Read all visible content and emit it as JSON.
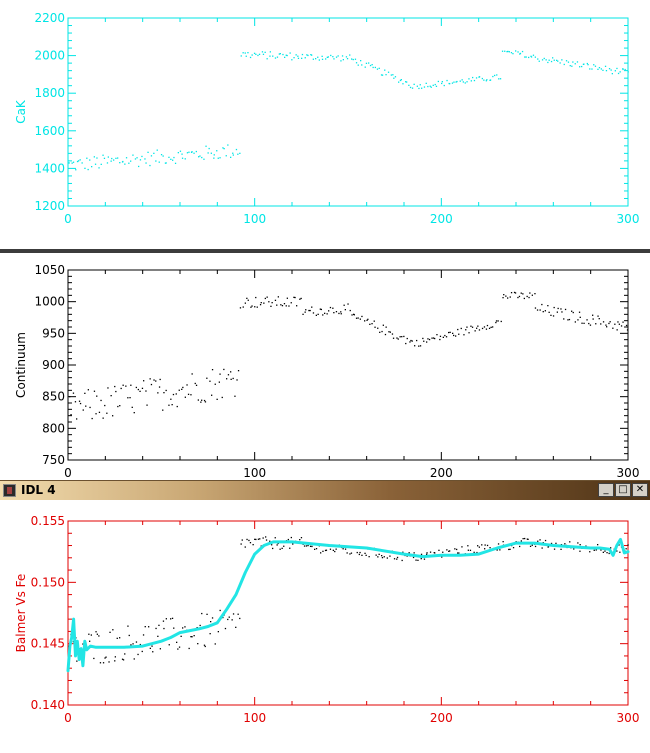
{
  "window": {
    "title": "IDL 4",
    "minimize_icon": "minimize-icon",
    "maximize_icon": "maximize-icon",
    "close_icon": "close-icon",
    "minimize_glyph": "_",
    "maximize_glyph": "□",
    "close_glyph": "✕"
  },
  "chart_data": [
    {
      "type": "scatter",
      "title": "",
      "xlabel": "",
      "ylabel": "CaK",
      "xlim": [
        0,
        300
      ],
      "ylim": [
        1200,
        2200
      ],
      "xticks": [
        0,
        100,
        200,
        300
      ],
      "yticks": [
        1200,
        1400,
        1600,
        1800,
        2000,
        2200
      ],
      "color": "#00e5e5",
      "background": "#ffffff",
      "series": [
        {
          "segments": [
            {
              "x0": 0,
              "x1": 92,
              "y0": 1420,
              "y1": 1500,
              "spread": 80
            },
            {
              "x0": 92,
              "x1": 120,
              "y0": 2010,
              "y1": 2000,
              "spread": 40
            },
            {
              "x0": 120,
              "x1": 150,
              "y0": 2000,
              "y1": 1990,
              "spread": 35
            },
            {
              "x0": 150,
              "x1": 185,
              "y0": 1990,
              "y1": 1840,
              "spread": 35
            },
            {
              "x0": 185,
              "x1": 232,
              "y0": 1840,
              "y1": 1890,
              "spread": 30
            },
            {
              "x0": 232,
              "x1": 245,
              "y0": 2020,
              "y1": 2010,
              "spread": 30
            },
            {
              "x0": 245,
              "x1": 300,
              "y0": 2000,
              "y1": 1910,
              "spread": 35
            }
          ]
        }
      ]
    },
    {
      "type": "scatter",
      "title": "",
      "xlabel": "",
      "ylabel": "Continuum",
      "xlim": [
        0,
        300
      ],
      "ylim": [
        750,
        1050
      ],
      "xticks": [
        0,
        100,
        200,
        300
      ],
      "yticks": [
        750,
        800,
        850,
        900,
        950,
        1000,
        1050
      ],
      "color": "#000000",
      "background": "#ffffff",
      "series": [
        {
          "segments": [
            {
              "x0": 0,
              "x1": 92,
              "y0": 830,
              "y1": 880,
              "spread": 55
            },
            {
              "x0": 92,
              "x1": 125,
              "y0": 1000,
              "y1": 1000,
              "spread": 18
            },
            {
              "x0": 125,
              "x1": 150,
              "y0": 985,
              "y1": 990,
              "spread": 15
            },
            {
              "x0": 150,
              "x1": 185,
              "y0": 980,
              "y1": 935,
              "spread": 15
            },
            {
              "x0": 185,
              "x1": 232,
              "y0": 935,
              "y1": 970,
              "spread": 12
            },
            {
              "x0": 232,
              "x1": 250,
              "y0": 1010,
              "y1": 1010,
              "spread": 12
            },
            {
              "x0": 250,
              "x1": 300,
              "y0": 990,
              "y1": 960,
              "spread": 18
            }
          ]
        }
      ]
    },
    {
      "type": "scatter",
      "title": "",
      "xlabel": "",
      "ylabel": "Balmer Vs Fe",
      "xlim": [
        0,
        300
      ],
      "ylim": [
        0.14,
        0.155
      ],
      "xticks": [
        0,
        100,
        200,
        300
      ],
      "yticks": [
        0.14,
        0.145,
        0.15,
        0.155
      ],
      "axis_color": "#e00000",
      "point_color": "#000000",
      "line_color": "#22e5e5",
      "background": "#ffffff",
      "series": [
        {
          "segments": [
            {
              "x0": 0,
              "x1": 92,
              "y0": 0.1445,
              "y1": 0.1465,
              "spread": 0.003
            },
            {
              "x0": 92,
              "x1": 125,
              "y0": 0.1533,
              "y1": 0.1532,
              "spread": 0.001
            },
            {
              "x0": 125,
              "x1": 185,
              "y0": 0.153,
              "y1": 0.1521,
              "spread": 0.0008
            },
            {
              "x0": 185,
              "x1": 245,
              "y0": 0.1521,
              "y1": 0.1533,
              "spread": 0.0008
            },
            {
              "x0": 245,
              "x1": 300,
              "y0": 0.1532,
              "y1": 0.1527,
              "spread": 0.0008
            }
          ]
        },
        {
          "name": "",
          "kind": "line",
          "x": [
            0,
            1,
            2,
            3,
            4,
            5,
            6,
            7,
            8,
            9,
            10,
            12,
            15,
            20,
            30,
            40,
            50,
            55,
            60,
            70,
            75,
            80,
            85,
            90,
            95,
            100,
            105,
            110,
            120,
            140,
            160,
            180,
            190,
            200,
            210,
            220,
            230,
            240,
            250,
            260,
            270,
            280,
            285,
            290,
            292,
            294,
            296,
            298,
            300
          ],
          "y": [
            0.1428,
            0.1448,
            0.1455,
            0.147,
            0.144,
            0.1452,
            0.1437,
            0.1446,
            0.1432,
            0.1452,
            0.1445,
            0.1448,
            0.1447,
            0.1447,
            0.1447,
            0.1448,
            0.1452,
            0.1455,
            0.1459,
            0.1462,
            0.1464,
            0.1467,
            0.1478,
            0.149,
            0.1508,
            0.1523,
            0.153,
            0.1533,
            0.1533,
            0.153,
            0.1528,
            0.1523,
            0.1521,
            0.1522,
            0.1522,
            0.1523,
            0.1528,
            0.1532,
            0.1532,
            0.153,
            0.1529,
            0.1528,
            0.1528,
            0.1527,
            0.1522,
            0.153,
            0.1535,
            0.1524,
            0.1525
          ]
        }
      ]
    }
  ]
}
